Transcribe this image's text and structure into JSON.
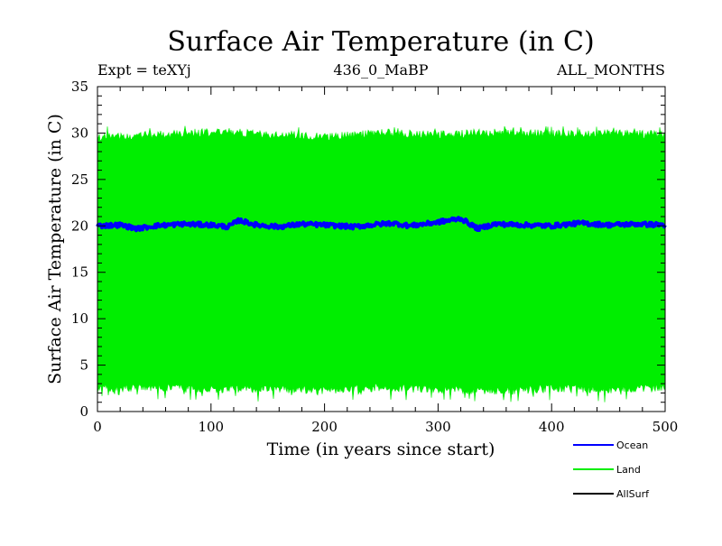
{
  "header": {
    "title": "Surface Air Temperature (in C)",
    "expt_label": "Expt = teXYj",
    "run_label": "436_0_MaBP",
    "months_label": "ALL_MONTHS"
  },
  "chart_data": {
    "type": "line",
    "title": "Surface Air Temperature (in C)",
    "xlabel": "Time (in years since start)",
    "ylabel": "Surface Air Temperature (in C)",
    "xlim": [
      0,
      500
    ],
    "ylim": [
      0,
      35
    ],
    "xticks": [
      0,
      100,
      200,
      300,
      400,
      500
    ],
    "yticks": [
      0,
      5,
      10,
      15,
      20,
      25,
      30,
      35
    ],
    "grid": false,
    "legend_position": "bottom-right",
    "series": [
      {
        "name": "Land",
        "color": "#00ee00",
        "style": "seasonal-cycle-band",
        "x": [
          0,
          50,
          100,
          150,
          200,
          250,
          300,
          350,
          400,
          450,
          500
        ],
        "y_max": [
          29.5,
          29.8,
          30.1,
          29.9,
          29.6,
          30.0,
          29.8,
          30.1,
          29.9,
          30.0,
          29.8
        ],
        "y_min": [
          2.5,
          2.6,
          2.4,
          2.5,
          2.3,
          2.6,
          2.4,
          2.2,
          2.5,
          2.4,
          2.6
        ],
        "y_max_extreme": 30.8,
        "y_min_extreme": 1.0
      },
      {
        "name": "Ocean",
        "color": "#0000ff",
        "x": [
          0,
          20,
          35,
          50,
          75,
          100,
          115,
          125,
          140,
          160,
          180,
          200,
          225,
          250,
          260,
          275,
          300,
          320,
          335,
          350,
          375,
          400,
          425,
          450,
          475,
          500
        ],
        "y": [
          20.0,
          20.1,
          19.7,
          20.0,
          20.2,
          20.1,
          19.9,
          20.6,
          20.1,
          19.9,
          20.2,
          20.1,
          19.9,
          20.2,
          20.3,
          20.0,
          20.4,
          20.8,
          19.7,
          20.2,
          20.1,
          20.0,
          20.3,
          20.1,
          20.2,
          20.1
        ]
      },
      {
        "name": "AllSurf",
        "color": "#000000",
        "x": [],
        "y": []
      }
    ]
  }
}
